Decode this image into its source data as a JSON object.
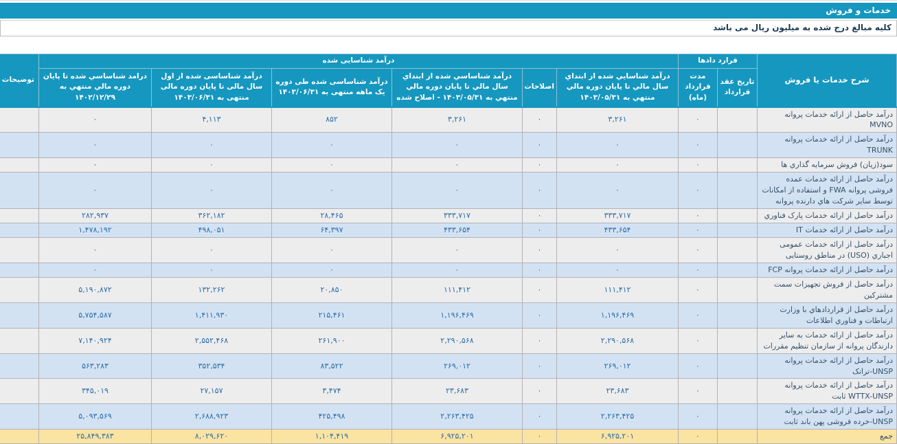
{
  "title_bar": {
    "label": "خدمات و فروش"
  },
  "note_bar": {
    "text": "کلیه مبالغ درج شده به میلیون ریال می باشد"
  },
  "colors": {
    "header_teal": "#1697BF",
    "row_gray": "#EDEDED",
    "row_blue": "#D3E2F3",
    "total_yellow": "#FBE3A2",
    "number_text": "#2B6CA8",
    "label_text": "#35506B"
  },
  "table": {
    "group_headers": {
      "service": "شرح خدمات یا فروش",
      "contracts": "قرارد دادها",
      "recognized_revenue": "درآمد شناسایی شده",
      "notes": "توضیحات"
    },
    "col_headers": {
      "contract_date": "تاریخ عقد قرارداد",
      "contract_duration": "مدت قرارداد (ماه)",
      "rev_to_1403_05_31": "درآمد شناسايي شده از ابتداي سال مالي تا پايان دوره مالي منتهي به ۱۴۰۳/۰۵/۳۱",
      "adjustments": "اصلاحات",
      "rev_to_1403_05_31_adjusted": "درآمد شناساسي شده از ابتداي سال مالي تا پايان دوره مالي منتهي به ۱۴۰۳/۰۵/۳۱ - اصلاح شده",
      "rev_one_month_1403_06_31": "درآمد شناساسی شده طی دوره یک ماهه منتهی به ۱۴۰۳/۰۶/۳۱",
      "rev_ytd_1403_06_31": "درآمد شناساسی شده از اول سال مالی تا پایان دوره مالی منتهی به ۱۴۰۳/۰۶/۳۱",
      "rev_to_1402_12_29": "درامد شناساسي شده تا پايان دوره مالي منتهي به ۱۴۰۲/۱۲/۲۹"
    },
    "rows": [
      {
        "label": "درآمد حاصل از ارائه خدمات پروانه MVNO",
        "contract_date": "",
        "duration": "۰",
        "values": [
          "۳,۲۶۱",
          "۰",
          "۳,۲۶۱",
          "۸۵۲",
          "۴,۱۱۳",
          "۰"
        ],
        "note": ""
      },
      {
        "label": "درآمد حاصل از ارائه خدمات پروانه TRUNK",
        "contract_date": "",
        "duration": "۰",
        "values": [
          "۰",
          "۰",
          "۰",
          "۰",
          "۰",
          "۰"
        ],
        "note": ""
      },
      {
        "label": "سود(زیان) فروش سرمایه گذاري ها",
        "contract_date": "",
        "duration": "۰",
        "values": [
          "۰",
          "۰",
          "۰",
          "۰",
          "۰",
          "۰"
        ],
        "note": ""
      },
      {
        "label": "درآمد حاصل از ارائه خدمات عمده فروشی پروانه FWA و استفاده از امکانات توسط سایر شرکت هاي دارنده پروانه",
        "contract_date": "",
        "duration": "۰",
        "values": [
          "۰",
          "۰",
          "۰",
          "۰",
          "۰",
          "۰"
        ],
        "note": ""
      },
      {
        "label": "درآمد حاصل از ارائه خدمات پارک فناوري",
        "contract_date": "",
        "duration": "۰",
        "values": [
          "۳۳۳,۷۱۷",
          "۰",
          "۳۳۳,۷۱۷",
          "۲۸,۴۶۵",
          "۳۶۲,۱۸۲",
          "۲۸۲,۹۳۷"
        ],
        "note": ""
      },
      {
        "label": "درآمد حاصل از ارائه خدمات IT",
        "contract_date": "",
        "duration": "۰",
        "values": [
          "۴۳۳,۶۵۴",
          "۰",
          "۴۳۳,۶۵۴",
          "۶۴,۳۹۷",
          "۴۹۸,۰۵۱",
          "۱,۴۷۸,۱۹۲"
        ],
        "note": ""
      },
      {
        "label": "درآمد حاصل از ارائه خدمات عمومی اجباري (USO) در مناطق روستایی",
        "contract_date": "",
        "duration": "۰",
        "values": [
          "۰",
          "۰",
          "۰",
          "۰",
          "۰",
          "۰"
        ],
        "note": ""
      },
      {
        "label": "درآمد حاصل از ارائه خدمات پروانه FCP",
        "contract_date": "",
        "duration": "۰",
        "values": [
          "۰",
          "۰",
          "۰",
          "۰",
          "۰",
          "۰"
        ],
        "note": ""
      },
      {
        "label": "درآمد حاصل از فروش تجهیزات سمت مشترکین",
        "contract_date": "",
        "duration": "۰",
        "values": [
          "۱۱۱,۴۱۲",
          "۰",
          "۱۱۱,۴۱۲",
          "۲۰,۸۵۰",
          "۱۳۲,۲۶۲",
          "۵,۱۹۰,۸۷۲"
        ],
        "note": ""
      },
      {
        "label": "درآمد حاصل از قراردادهاي با وزارت ارتباطات و فناوري اطلاعات",
        "contract_date": "",
        "duration": "۰",
        "values": [
          "۱,۱۹۶,۴۶۹",
          "۰",
          "۱,۱۹۶,۴۶۹",
          "۲۱۵,۴۶۱",
          "۱,۴۱۱,۹۳۰",
          "۵,۷۵۴,۵۸۷"
        ],
        "note": ""
      },
      {
        "label": "درآمد حاصل از ارائه خدمات به سایر دارندگان پروانه از سازمان تنظیم مقررات",
        "contract_date": "",
        "duration": "۰",
        "values": [
          "۲,۲۹۰,۵۶۸",
          "۰",
          "۲,۲۹۰,۵۶۸",
          "۲۶۱,۹۰۰",
          "۲,۵۵۲,۴۶۸",
          "۷,۱۴۰,۹۲۴"
        ],
        "note": ""
      },
      {
        "label": "درآمد حاصل از ارائه خدمات پروانه UNSP-ترانک",
        "contract_date": "",
        "duration": "۰",
        "values": [
          "۲۶۹,۰۱۲",
          "۰",
          "۲۶۹,۰۱۲",
          "۸۳,۵۲۲",
          "۳۵۲,۵۳۴",
          "۵۶۳,۲۸۳"
        ],
        "note": ""
      },
      {
        "label": "درآمد حاصل از ارائه خدمات پروانه WTTX-UNSP ثابت",
        "contract_date": "",
        "duration": "۰",
        "values": [
          "۲۳,۶۸۳",
          "۰",
          "۲۳,۶۸۳",
          "۳,۴۷۴",
          "۲۷,۱۵۷",
          "۳۴۵,۰۱۹"
        ],
        "note": ""
      },
      {
        "label": "درآمد حاصل از ارائه خدمات پروانه UNSP-خرده فروشی پهن باند ثابت",
        "contract_date": "",
        "duration": "۰",
        "values": [
          "۲,۲۶۳,۴۲۵",
          "۰",
          "۲,۲۶۳,۴۲۵",
          "۴۲۵,۴۹۸",
          "۲,۶۸۸,۹۲۳",
          "۵,۰۹۳,۵۶۹"
        ],
        "note": ""
      },
      {
        "label": "جمع",
        "total": true,
        "contract_date": "",
        "duration": "۰",
        "values": [
          "۶,۹۲۵,۲۰۱",
          "۰",
          "۶,۹۲۵,۲۰۱",
          "۱,۱۰۴,۴۱۹",
          "۸,۰۲۹,۶۲۰",
          "۲۵,۸۴۹,۳۸۳"
        ],
        "note": ""
      }
    ]
  }
}
